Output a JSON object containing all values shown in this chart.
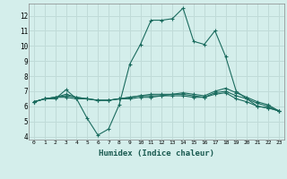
{
  "title": "",
  "xlabel": "Humidex (Indice chaleur)",
  "ylabel": "",
  "background_color": "#d4eeeb",
  "grid_color": "#c0dbd8",
  "line_color": "#1a6b5e",
  "xlim": [
    -0.5,
    23.5
  ],
  "ylim": [
    3.8,
    12.8
  ],
  "xticks": [
    0,
    1,
    2,
    3,
    4,
    5,
    6,
    7,
    8,
    9,
    10,
    11,
    12,
    13,
    14,
    15,
    16,
    17,
    18,
    19,
    20,
    21,
    22,
    23
  ],
  "yticks": [
    4,
    5,
    6,
    7,
    8,
    9,
    10,
    11,
    12
  ],
  "series": [
    [
      6.3,
      6.5,
      6.5,
      7.1,
      6.5,
      5.2,
      4.1,
      4.5,
      6.1,
      8.8,
      10.1,
      11.7,
      11.7,
      11.8,
      12.5,
      10.3,
      10.1,
      11.0,
      9.3,
      7.0,
      6.5,
      6.0,
      5.9,
      5.7
    ],
    [
      6.3,
      6.5,
      6.6,
      6.6,
      6.5,
      6.5,
      6.4,
      6.4,
      6.5,
      6.5,
      6.6,
      6.6,
      6.7,
      6.7,
      6.7,
      6.6,
      6.6,
      6.8,
      6.9,
      6.5,
      6.3,
      6.0,
      5.9,
      5.7
    ],
    [
      6.3,
      6.5,
      6.6,
      6.7,
      6.6,
      6.5,
      6.4,
      6.4,
      6.5,
      6.6,
      6.7,
      6.7,
      6.7,
      6.8,
      6.8,
      6.7,
      6.6,
      6.9,
      7.0,
      6.7,
      6.5,
      6.2,
      6.0,
      5.7
    ],
    [
      6.3,
      6.5,
      6.6,
      6.8,
      6.6,
      6.5,
      6.4,
      6.4,
      6.5,
      6.6,
      6.7,
      6.8,
      6.8,
      6.8,
      6.9,
      6.8,
      6.7,
      7.0,
      7.2,
      6.9,
      6.6,
      6.3,
      6.1,
      5.7
    ]
  ]
}
